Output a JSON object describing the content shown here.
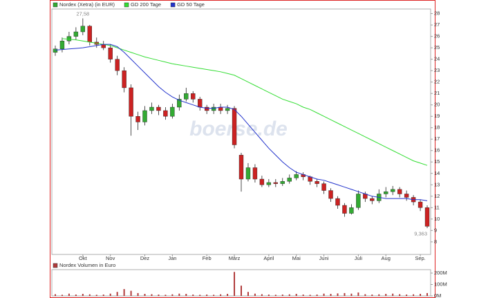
{
  "chart_data": [
    {
      "type": "candlestick",
      "categories": [
        null,
        null,
        null,
        null,
        "Okt",
        null,
        null,
        null,
        "Nov",
        null,
        null,
        null,
        null,
        "Dez",
        null,
        null,
        null,
        "Jan",
        null,
        null,
        null,
        null,
        "Feb",
        null,
        null,
        null,
        "März",
        null,
        null,
        null,
        null,
        "April",
        null,
        null,
        null,
        "Mai",
        null,
        null,
        null,
        "Juni",
        null,
        null,
        null,
        null,
        "Juli",
        null,
        null,
        null,
        "Aug",
        null,
        null,
        null,
        null,
        "Sep.",
        null
      ],
      "series": [
        {
          "name": "Nordex (Xetra) (in EUR)",
          "color": "#33aa33",
          "down_color": "#cc2222",
          "open": [
            24.6,
            24.9,
            25.6,
            26.0,
            26.4,
            26.9,
            25.5,
            25.3,
            25.0,
            24.0,
            23.0,
            21.5,
            19.0,
            18.5,
            19.5,
            19.8,
            19.5,
            19.0,
            19.8,
            20.5,
            21.0,
            20.5,
            19.8,
            19.5,
            19.8,
            19.5,
            19.7,
            15.6,
            13.5,
            14.5,
            13.5,
            13.0,
            13.2,
            13.1,
            13.3,
            13.6,
            13.9,
            13.7,
            13.3,
            13.1,
            12.5,
            11.8,
            11.2,
            10.5,
            11.0,
            12.2,
            11.8,
            11.6,
            12.2,
            12.4,
            12.6,
            12.2,
            11.9,
            11.5,
            11.0
          ],
          "high": [
            25.2,
            25.9,
            26.4,
            26.8,
            27.58,
            27.0,
            25.9,
            25.6,
            25.3,
            24.3,
            23.3,
            21.8,
            19.4,
            19.9,
            20.2,
            20.0,
            19.8,
            20.1,
            20.9,
            21.5,
            21.2,
            20.7,
            20.0,
            20.1,
            20.1,
            20.0,
            19.9,
            15.8,
            14.9,
            14.8,
            13.8,
            13.5,
            13.5,
            13.6,
            13.9,
            14.2,
            14.1,
            13.8,
            13.5,
            13.3,
            12.7,
            12.0,
            11.4,
            11.3,
            12.5,
            12.4,
            12.0,
            12.6,
            12.8,
            12.9,
            12.8,
            12.5,
            12.1,
            11.7,
            11.2
          ],
          "low": [
            24.3,
            24.6,
            25.3,
            25.7,
            26.1,
            25.2,
            25.0,
            24.8,
            23.7,
            22.6,
            21.1,
            17.3,
            17.8,
            18.2,
            19.2,
            19.1,
            18.7,
            18.8,
            19.5,
            20.3,
            20.2,
            19.5,
            19.2,
            19.2,
            19.2,
            19.2,
            16.2,
            12.4,
            13.3,
            13.2,
            12.8,
            12.8,
            12.8,
            12.9,
            13.1,
            13.4,
            13.4,
            13.0,
            12.8,
            12.2,
            11.5,
            10.9,
            10.2,
            10.4,
            10.8,
            11.5,
            11.3,
            11.4,
            11.9,
            12.1,
            11.9,
            11.6,
            11.2,
            10.7,
            9.2
          ],
          "close": [
            24.9,
            25.6,
            26.0,
            26.4,
            26.9,
            25.5,
            25.3,
            25.0,
            24.0,
            23.0,
            21.5,
            19.0,
            18.5,
            19.5,
            19.8,
            19.5,
            19.0,
            19.8,
            20.5,
            21.0,
            20.5,
            19.8,
            19.5,
            19.8,
            19.5,
            19.7,
            16.5,
            13.5,
            14.5,
            13.5,
            13.0,
            13.2,
            13.1,
            13.3,
            13.6,
            13.9,
            13.7,
            13.3,
            13.1,
            12.5,
            11.8,
            11.2,
            10.5,
            11.0,
            12.2,
            11.8,
            11.6,
            12.2,
            12.4,
            12.6,
            12.2,
            11.9,
            11.5,
            11.0,
            9.363
          ]
        },
        {
          "name": "GD 200 Tage",
          "type": "line",
          "color": "#33dd33",
          "values": [
            null,
            25.8,
            25.75,
            25.7,
            25.6,
            25.5,
            25.4,
            25.3,
            25.2,
            25.0,
            24.8,
            24.6,
            24.4,
            24.2,
            24.05,
            23.9,
            23.75,
            23.6,
            23.5,
            23.4,
            23.3,
            23.2,
            23.1,
            23.0,
            22.9,
            22.75,
            22.6,
            22.3,
            22.0,
            21.7,
            21.4,
            21.1,
            20.8,
            20.5,
            20.3,
            20.1,
            19.8,
            19.6,
            19.3,
            19.0,
            18.7,
            18.4,
            18.1,
            17.8,
            17.5,
            17.2,
            16.9,
            16.6,
            16.3,
            16.0,
            15.7,
            15.4,
            15.1,
            14.9,
            14.7
          ]
        },
        {
          "name": "GD 50 Tage",
          "type": "line",
          "color": "#2233cc",
          "values": [
            24.8,
            24.85,
            24.9,
            24.95,
            25.0,
            25.1,
            25.2,
            25.3,
            25.3,
            25.1,
            24.6,
            24.0,
            23.4,
            22.8,
            22.2,
            21.6,
            21.1,
            20.7,
            20.4,
            20.2,
            20.0,
            19.8,
            19.7,
            19.7,
            19.8,
            19.8,
            19.6,
            19.0,
            18.3,
            17.6,
            16.9,
            16.2,
            15.6,
            15.0,
            14.5,
            14.1,
            13.9,
            13.7,
            13.5,
            13.4,
            13.2,
            13.0,
            12.8,
            12.6,
            12.4,
            12.2,
            12.0,
            11.9,
            11.8,
            11.8,
            11.8,
            11.8,
            11.7,
            11.7,
            11.6
          ]
        }
      ],
      "ylim": [
        6.9,
        28.4
      ],
      "yticks": [
        8,
        9,
        10,
        11,
        12,
        13,
        14,
        15,
        16,
        17,
        18,
        19,
        20,
        21,
        22,
        23,
        24,
        25,
        26,
        27,
        28
      ],
      "annotations": [
        {
          "label": "27,58",
          "value": 27.58
        },
        {
          "label": "9,363",
          "value": 9.363
        }
      ],
      "watermark": "boerse.de"
    },
    {
      "type": "bar",
      "series": [
        {
          "name": "Nordex Volumen in Euro",
          "color": "#b03a3a",
          "values": [
            15000000,
            10000000,
            20000000,
            12000000,
            18000000,
            14000000,
            10000000,
            12000000,
            20000000,
            35000000,
            60000000,
            45000000,
            25000000,
            18000000,
            15000000,
            12000000,
            10000000,
            14000000,
            20000000,
            18000000,
            12000000,
            10000000,
            12000000,
            10000000,
            14000000,
            18000000,
            210000000,
            90000000,
            35000000,
            20000000,
            15000000,
            12000000,
            10000000,
            12000000,
            14000000,
            18000000,
            12000000,
            10000000,
            12000000,
            20000000,
            18000000,
            22000000,
            25000000,
            20000000,
            30000000,
            15000000,
            12000000,
            14000000,
            18000000,
            20000000,
            15000000,
            12000000,
            14000000,
            18000000,
            25000000
          ]
        }
      ],
      "ylim": [
        0,
        230000000
      ],
      "yticks": [
        {
          "value": 0,
          "label": "0M"
        },
        {
          "value": 100000000,
          "label": "100M"
        },
        {
          "value": 200000000,
          "label": "200M"
        }
      ]
    }
  ]
}
